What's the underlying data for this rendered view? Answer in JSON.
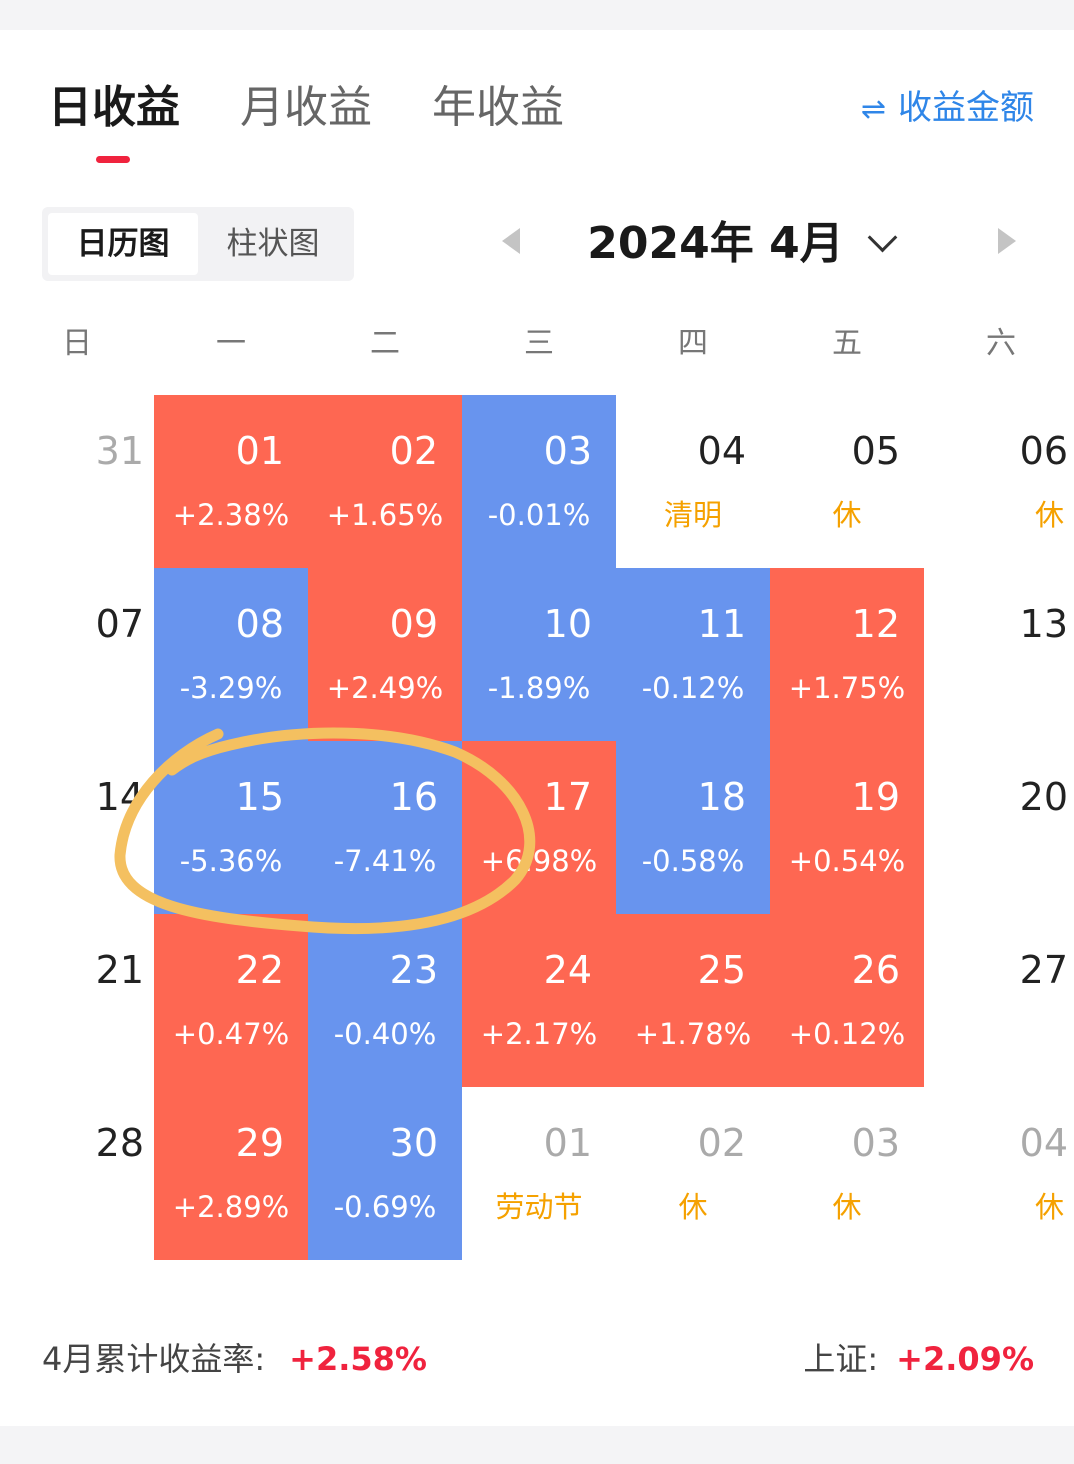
{
  "tabs": [
    {
      "label": "日收益",
      "active": true
    },
    {
      "label": "月收益",
      "active": false
    },
    {
      "label": "年收益",
      "active": false
    }
  ],
  "toggle_label": "收益金额",
  "view_switch": [
    "日历图",
    "柱状图"
  ],
  "month_title": "2024年 4月",
  "weekdays": [
    "日",
    "一",
    "二",
    "三",
    "四",
    "五",
    "六"
  ],
  "colors": {
    "up": "#fe6752",
    "down": "#6894ee",
    "holiday": "#f5a100",
    "accent": "#f0233e",
    "link": "#2f86e8"
  },
  "weeks": [
    [
      {
        "day": "31",
        "sub": "",
        "state": "other"
      },
      {
        "day": "01",
        "sub": "+2.38%",
        "state": "up"
      },
      {
        "day": "02",
        "sub": "+1.65%",
        "state": "up"
      },
      {
        "day": "03",
        "sub": "-0.01%",
        "state": "down"
      },
      {
        "day": "04",
        "sub": "清明",
        "state": "holiday"
      },
      {
        "day": "05",
        "sub": "休",
        "state": "holiday"
      },
      {
        "day": "06",
        "sub": "休",
        "state": "holiday"
      }
    ],
    [
      {
        "day": "07",
        "sub": "",
        "state": "normal"
      },
      {
        "day": "08",
        "sub": "-3.29%",
        "state": "down"
      },
      {
        "day": "09",
        "sub": "+2.49%",
        "state": "up"
      },
      {
        "day": "10",
        "sub": "-1.89%",
        "state": "down"
      },
      {
        "day": "11",
        "sub": "-0.12%",
        "state": "down"
      },
      {
        "day": "12",
        "sub": "+1.75%",
        "state": "up"
      },
      {
        "day": "13",
        "sub": "",
        "state": "normal"
      }
    ],
    [
      {
        "day": "14",
        "sub": "",
        "state": "normal"
      },
      {
        "day": "15",
        "sub": "-5.36%",
        "state": "down"
      },
      {
        "day": "16",
        "sub": "-7.41%",
        "state": "down"
      },
      {
        "day": "17",
        "sub": "+6.98%",
        "state": "up"
      },
      {
        "day": "18",
        "sub": "-0.58%",
        "state": "down"
      },
      {
        "day": "19",
        "sub": "+0.54%",
        "state": "up"
      },
      {
        "day": "20",
        "sub": "",
        "state": "normal"
      }
    ],
    [
      {
        "day": "21",
        "sub": "",
        "state": "normal"
      },
      {
        "day": "22",
        "sub": "+0.47%",
        "state": "up"
      },
      {
        "day": "23",
        "sub": "-0.40%",
        "state": "down"
      },
      {
        "day": "24",
        "sub": "+2.17%",
        "state": "up"
      },
      {
        "day": "25",
        "sub": "+1.78%",
        "state": "up"
      },
      {
        "day": "26",
        "sub": "+0.12%",
        "state": "up"
      },
      {
        "day": "27",
        "sub": "",
        "state": "normal"
      }
    ],
    [
      {
        "day": "28",
        "sub": "",
        "state": "normal"
      },
      {
        "day": "29",
        "sub": "+2.89%",
        "state": "up"
      },
      {
        "day": "30",
        "sub": "-0.69%",
        "state": "down"
      },
      {
        "day": "01",
        "sub": "劳动节",
        "state": "other-holiday"
      },
      {
        "day": "02",
        "sub": "休",
        "state": "other-holiday"
      },
      {
        "day": "03",
        "sub": "休",
        "state": "other-holiday"
      },
      {
        "day": "04",
        "sub": "休",
        "state": "other-holiday"
      }
    ]
  ],
  "footer": {
    "cumulative_label": "4月累计收益率:",
    "cumulative_value": "+2.58%",
    "index_label": "上证:",
    "index_value": "+2.09%"
  }
}
